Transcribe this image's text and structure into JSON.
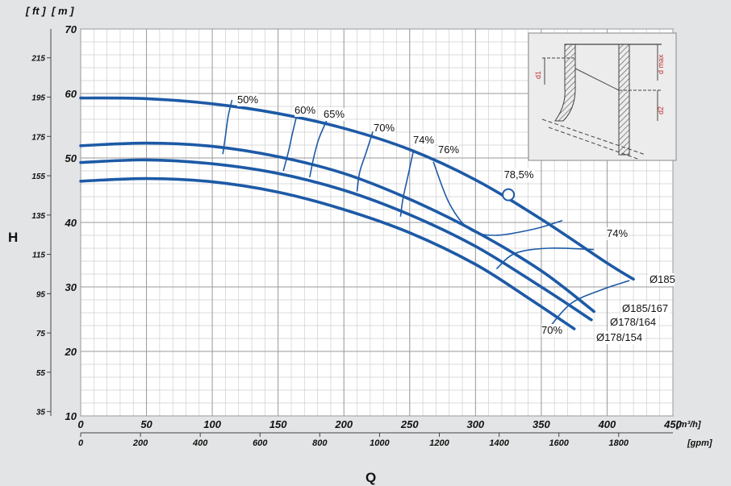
{
  "chart_data": {
    "type": "line",
    "title": "",
    "xlabel": "Q",
    "ylabel": "H",
    "x_unit_primary": "[m³/h]",
    "x_unit_secondary": "[gpm]",
    "y_unit_primary": "[ m ]",
    "y_unit_secondary": "[ ft ]",
    "xlim": [
      0,
      450
    ],
    "ylim": [
      10,
      70
    ],
    "grid": true,
    "x_ticks": [
      "0",
      "50",
      "100",
      "150",
      "200",
      "250",
      "300",
      "350",
      "400",
      "450"
    ],
    "x2_ticks": [
      "0",
      "200",
      "400",
      "600",
      "800",
      "1000",
      "1200",
      "1400",
      "1600",
      "1800"
    ],
    "y_ticks": [
      "10",
      "20",
      "30",
      "40",
      "50",
      "60",
      "70"
    ],
    "y2_ticks": [
      "35",
      "55",
      "75",
      "95",
      "115",
      "135",
      "155",
      "175",
      "195",
      "215"
    ],
    "series": [
      {
        "name": "Ø185",
        "x": [
          0,
          50,
          100,
          150,
          200,
          250,
          300,
          350,
          400,
          420
        ],
        "y": [
          59.3,
          59.2,
          58.4,
          56.9,
          54.6,
          51.3,
          46.6,
          40.5,
          33.7,
          31.2
        ]
      },
      {
        "name": "Ø185/167",
        "x": [
          0,
          50,
          100,
          150,
          200,
          250,
          300,
          350,
          390
        ],
        "y": [
          51.9,
          52.3,
          51.8,
          50.2,
          47.6,
          43.6,
          38.6,
          32.5,
          26.2
        ]
      },
      {
        "name": "Ø178/164",
        "x": [
          0,
          50,
          100,
          150,
          200,
          250,
          300,
          350,
          388
        ],
        "y": [
          49.3,
          49.7,
          49.1,
          47.6,
          45.0,
          41.2,
          36.3,
          30.0,
          24.9
        ]
      },
      {
        "name": "Ø178/154",
        "x": [
          0,
          50,
          100,
          150,
          200,
          250,
          300,
          340,
          375
        ],
        "y": [
          46.4,
          46.8,
          46.3,
          44.7,
          42.0,
          38.4,
          33.5,
          28.3,
          23.5
        ]
      }
    ],
    "efficiency_lines": [
      {
        "label": "50%",
        "points": [
          [
            115,
            59.0
          ],
          [
            112,
            56.4
          ],
          [
            110,
            53.4
          ],
          [
            108,
            50.6
          ]
        ]
      },
      {
        "label": "60%",
        "points": [
          [
            165,
            57.3
          ],
          [
            161,
            53.9
          ],
          [
            158,
            51.1
          ],
          [
            154,
            48.0
          ]
        ]
      },
      {
        "label": "65%",
        "points": [
          [
            188,
            56.3
          ],
          [
            181,
            53.0
          ],
          [
            177,
            50.0
          ],
          [
            174,
            47.0
          ]
        ]
      },
      {
        "label": "70%",
        "points": [
          [
            222,
            54.1
          ],
          [
            217,
            50.9
          ],
          [
            212,
            47.8
          ],
          [
            210,
            44.8
          ]
        ]
      },
      {
        "label": "74%",
        "points": [
          [
            253,
            51.3
          ],
          [
            249,
            47.5
          ],
          [
            245,
            43.8
          ],
          [
            243,
            40.9
          ]
        ]
      },
      {
        "label": "76%",
        "points": [
          [
            268,
            49.4
          ],
          [
            280,
            43.0
          ],
          [
            295,
            39.0
          ],
          [
            315,
            38.0
          ],
          [
            345,
            39.0
          ],
          [
            366,
            40.3
          ]
        ]
      },
      {
        "label": "74%",
        "points": [
          [
            316,
            32.8
          ],
          [
            330,
            35.2
          ],
          [
            355,
            36.0
          ],
          [
            390,
            35.8
          ]
        ]
      },
      {
        "label": "70%",
        "points": [
          [
            358,
            24.2
          ],
          [
            373,
            27.5
          ],
          [
            395,
            29.5
          ],
          [
            417,
            31.0
          ]
        ]
      }
    ],
    "best_efficiency": {
      "label": "78,5%",
      "x": 325,
      "y": 44.3
    },
    "inset_labels": {
      "d1": "d1",
      "dmax": "d max",
      "d2": "d2"
    }
  }
}
